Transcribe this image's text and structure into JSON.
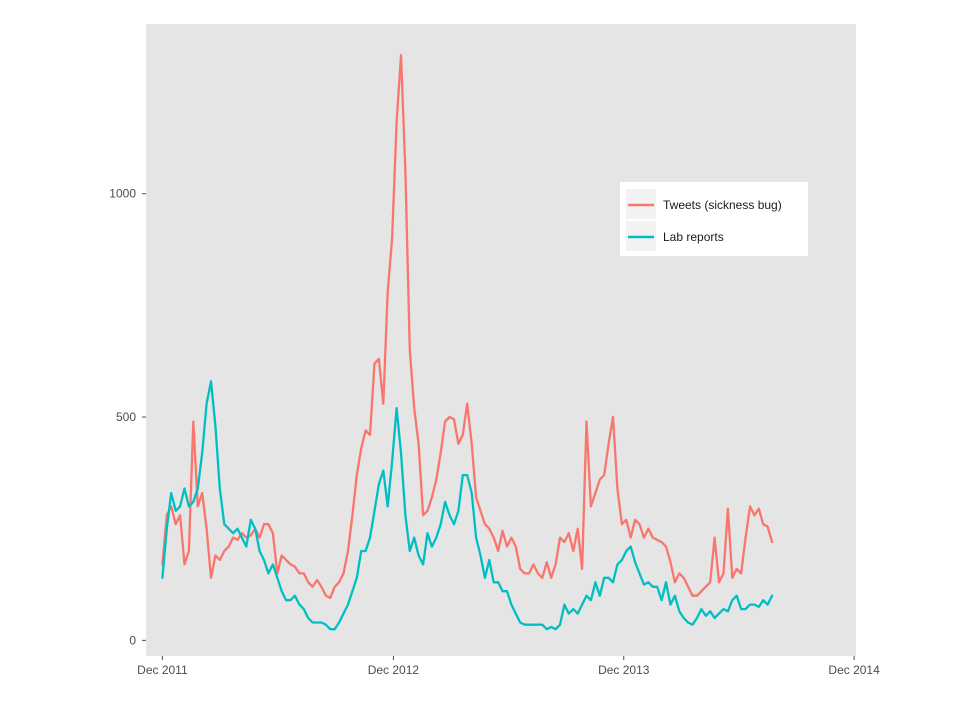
{
  "chart_data": {
    "type": "line",
    "title": "",
    "xlabel": "",
    "ylabel": "",
    "x_ticks": [
      "Dec 2011",
      "Dec 2012",
      "Dec 2013",
      "Dec 2014"
    ],
    "y_ticks": [
      0,
      500,
      1000
    ],
    "xlim": [
      "2011-11-05",
      "2014-12-04"
    ],
    "ylim": [
      -35,
      1380
    ],
    "grid": false,
    "legend_position": "top-right (inside plot)",
    "colors": {
      "panel_background": "#e5e5e5",
      "tweets": "#f8766d",
      "lab": "#00bfc4"
    },
    "series": [
      {
        "name": "Tweets (sickness bug)",
        "color": "#f8766d",
        "points": [
          [
            "2011-12-01",
            170
          ],
          [
            "2011-12-08",
            280
          ],
          [
            "2011-12-15",
            300
          ],
          [
            "2011-12-22",
            260
          ],
          [
            "2011-12-29",
            280
          ],
          [
            "2012-01-05",
            170
          ],
          [
            "2012-01-12",
            200
          ],
          [
            "2012-01-19",
            490
          ],
          [
            "2012-01-26",
            300
          ],
          [
            "2012-02-02",
            330
          ],
          [
            "2012-02-09",
            250
          ],
          [
            "2012-02-16",
            140
          ],
          [
            "2012-02-23",
            190
          ],
          [
            "2012-03-01",
            180
          ],
          [
            "2012-03-08",
            200
          ],
          [
            "2012-03-15",
            210
          ],
          [
            "2012-03-22",
            230
          ],
          [
            "2012-03-29",
            225
          ],
          [
            "2012-04-05",
            240
          ],
          [
            "2012-04-12",
            230
          ],
          [
            "2012-04-19",
            235
          ],
          [
            "2012-04-26",
            250
          ],
          [
            "2012-05-03",
            230
          ],
          [
            "2012-05-10",
            260
          ],
          [
            "2012-05-17",
            260
          ],
          [
            "2012-05-24",
            240
          ],
          [
            "2012-05-31",
            150
          ],
          [
            "2012-06-07",
            190
          ],
          [
            "2012-06-14",
            180
          ],
          [
            "2012-06-21",
            170
          ],
          [
            "2012-06-28",
            165
          ],
          [
            "2012-07-05",
            150
          ],
          [
            "2012-07-12",
            150
          ],
          [
            "2012-07-19",
            130
          ],
          [
            "2012-07-26",
            120
          ],
          [
            "2012-08-02",
            135
          ],
          [
            "2012-08-09",
            120
          ],
          [
            "2012-08-16",
            100
          ],
          [
            "2012-08-23",
            95
          ],
          [
            "2012-08-30",
            120
          ],
          [
            "2012-09-06",
            130
          ],
          [
            "2012-09-13",
            150
          ],
          [
            "2012-09-20",
            200
          ],
          [
            "2012-09-27",
            280
          ],
          [
            "2012-10-04",
            370
          ],
          [
            "2012-10-11",
            430
          ],
          [
            "2012-10-18",
            470
          ],
          [
            "2012-10-25",
            460
          ],
          [
            "2012-11-01",
            620
          ],
          [
            "2012-11-08",
            630
          ],
          [
            "2012-11-15",
            530
          ],
          [
            "2012-11-22",
            780
          ],
          [
            "2012-11-29",
            900
          ],
          [
            "2012-12-06",
            1160
          ],
          [
            "2012-12-13",
            1310
          ],
          [
            "2012-12-20",
            1050
          ],
          [
            "2012-12-27",
            650
          ],
          [
            "2013-01-03",
            520
          ],
          [
            "2013-01-10",
            440
          ],
          [
            "2013-01-17",
            280
          ],
          [
            "2013-01-24",
            290
          ],
          [
            "2013-01-31",
            320
          ],
          [
            "2013-02-07",
            360
          ],
          [
            "2013-02-14",
            420
          ],
          [
            "2013-02-21",
            490
          ],
          [
            "2013-02-28",
            500
          ],
          [
            "2013-03-07",
            495
          ],
          [
            "2013-03-14",
            440
          ],
          [
            "2013-03-21",
            460
          ],
          [
            "2013-03-28",
            530
          ],
          [
            "2013-04-04",
            440
          ],
          [
            "2013-04-11",
            320
          ],
          [
            "2013-04-18",
            290
          ],
          [
            "2013-04-25",
            260
          ],
          [
            "2013-05-02",
            250
          ],
          [
            "2013-05-09",
            230
          ],
          [
            "2013-05-16",
            200
          ],
          [
            "2013-05-23",
            245
          ],
          [
            "2013-05-30",
            210
          ],
          [
            "2013-06-06",
            230
          ],
          [
            "2013-06-13",
            210
          ],
          [
            "2013-06-20",
            160
          ],
          [
            "2013-06-27",
            150
          ],
          [
            "2013-07-04",
            150
          ],
          [
            "2013-07-11",
            170
          ],
          [
            "2013-07-18",
            150
          ],
          [
            "2013-07-25",
            140
          ],
          [
            "2013-08-01",
            175
          ],
          [
            "2013-08-08",
            140
          ],
          [
            "2013-08-15",
            170
          ],
          [
            "2013-08-22",
            230
          ],
          [
            "2013-08-29",
            220
          ],
          [
            "2013-09-05",
            240
          ],
          [
            "2013-09-12",
            200
          ],
          [
            "2013-09-19",
            250
          ],
          [
            "2013-09-26",
            160
          ],
          [
            "2013-10-03",
            490
          ],
          [
            "2013-10-10",
            300
          ],
          [
            "2013-10-17",
            330
          ],
          [
            "2013-10-24",
            360
          ],
          [
            "2013-10-31",
            370
          ],
          [
            "2013-11-07",
            440
          ],
          [
            "2013-11-14",
            500
          ],
          [
            "2013-11-21",
            340
          ],
          [
            "2013-11-28",
            260
          ],
          [
            "2013-12-05",
            270
          ],
          [
            "2013-12-12",
            230
          ],
          [
            "2013-12-19",
            270
          ],
          [
            "2013-12-26",
            260
          ],
          [
            "2014-01-02",
            230
          ],
          [
            "2014-01-09",
            250
          ],
          [
            "2014-01-16",
            230
          ],
          [
            "2014-01-23",
            225
          ],
          [
            "2014-01-30",
            220
          ],
          [
            "2014-02-06",
            210
          ],
          [
            "2014-02-13",
            175
          ],
          [
            "2014-02-20",
            130
          ],
          [
            "2014-02-27",
            150
          ],
          [
            "2014-03-06",
            140
          ],
          [
            "2014-03-13",
            120
          ],
          [
            "2014-03-20",
            100
          ],
          [
            "2014-03-27",
            100
          ],
          [
            "2014-04-03",
            110
          ],
          [
            "2014-04-10",
            120
          ],
          [
            "2014-04-17",
            130
          ],
          [
            "2014-04-24",
            230
          ],
          [
            "2014-05-01",
            130
          ],
          [
            "2014-05-08",
            150
          ],
          [
            "2014-05-15",
            295
          ],
          [
            "2014-05-22",
            140
          ],
          [
            "2014-05-29",
            160
          ],
          [
            "2014-06-05",
            150
          ],
          [
            "2014-06-12",
            230
          ],
          [
            "2014-06-19",
            300
          ],
          [
            "2014-06-26",
            280
          ],
          [
            "2014-07-03",
            295
          ],
          [
            "2014-07-10",
            260
          ],
          [
            "2014-07-17",
            255
          ],
          [
            "2014-07-24",
            220
          ]
        ]
      },
      {
        "name": "Lab reports",
        "color": "#00bfc4",
        "points": [
          [
            "2011-12-01",
            140
          ],
          [
            "2011-12-08",
            250
          ],
          [
            "2011-12-15",
            330
          ],
          [
            "2011-12-22",
            290
          ],
          [
            "2011-12-29",
            300
          ],
          [
            "2012-01-05",
            340
          ],
          [
            "2012-01-12",
            300
          ],
          [
            "2012-01-19",
            310
          ],
          [
            "2012-01-26",
            340
          ],
          [
            "2012-02-02",
            420
          ],
          [
            "2012-02-09",
            530
          ],
          [
            "2012-02-16",
            580
          ],
          [
            "2012-02-23",
            480
          ],
          [
            "2012-03-01",
            340
          ],
          [
            "2012-03-08",
            260
          ],
          [
            "2012-03-15",
            250
          ],
          [
            "2012-03-22",
            240
          ],
          [
            "2012-03-29",
            250
          ],
          [
            "2012-04-05",
            230
          ],
          [
            "2012-04-12",
            210
          ],
          [
            "2012-04-19",
            270
          ],
          [
            "2012-04-26",
            250
          ],
          [
            "2012-05-03",
            200
          ],
          [
            "2012-05-10",
            180
          ],
          [
            "2012-05-17",
            150
          ],
          [
            "2012-05-24",
            170
          ],
          [
            "2012-05-31",
            140
          ],
          [
            "2012-06-07",
            110
          ],
          [
            "2012-06-14",
            90
          ],
          [
            "2012-06-21",
            90
          ],
          [
            "2012-06-28",
            100
          ],
          [
            "2012-07-05",
            80
          ],
          [
            "2012-07-12",
            70
          ],
          [
            "2012-07-19",
            50
          ],
          [
            "2012-07-26",
            40
          ],
          [
            "2012-08-02",
            40
          ],
          [
            "2012-08-09",
            40
          ],
          [
            "2012-08-16",
            35
          ],
          [
            "2012-08-23",
            25
          ],
          [
            "2012-08-30",
            25
          ],
          [
            "2012-09-06",
            40
          ],
          [
            "2012-09-13",
            60
          ],
          [
            "2012-09-20",
            80
          ],
          [
            "2012-09-27",
            110
          ],
          [
            "2012-10-04",
            140
          ],
          [
            "2012-10-11",
            200
          ],
          [
            "2012-10-18",
            200
          ],
          [
            "2012-10-25",
            230
          ],
          [
            "2012-11-01",
            290
          ],
          [
            "2012-11-08",
            350
          ],
          [
            "2012-11-15",
            380
          ],
          [
            "2012-11-22",
            300
          ],
          [
            "2012-11-29",
            400
          ],
          [
            "2012-12-06",
            520
          ],
          [
            "2012-12-13",
            420
          ],
          [
            "2012-12-20",
            280
          ],
          [
            "2012-12-27",
            200
          ],
          [
            "2013-01-03",
            230
          ],
          [
            "2013-01-10",
            190
          ],
          [
            "2013-01-17",
            170
          ],
          [
            "2013-01-24",
            240
          ],
          [
            "2013-01-31",
            210
          ],
          [
            "2013-02-07",
            230
          ],
          [
            "2013-02-14",
            260
          ],
          [
            "2013-02-21",
            310
          ],
          [
            "2013-02-28",
            280
          ],
          [
            "2013-03-07",
            260
          ],
          [
            "2013-03-14",
            290
          ],
          [
            "2013-03-21",
            370
          ],
          [
            "2013-03-28",
            370
          ],
          [
            "2013-04-04",
            330
          ],
          [
            "2013-04-11",
            230
          ],
          [
            "2013-04-18",
            190
          ],
          [
            "2013-04-25",
            140
          ],
          [
            "2013-05-02",
            180
          ],
          [
            "2013-05-09",
            130
          ],
          [
            "2013-05-16",
            130
          ],
          [
            "2013-05-23",
            110
          ],
          [
            "2013-05-30",
            110
          ],
          [
            "2013-06-06",
            80
          ],
          [
            "2013-06-13",
            60
          ],
          [
            "2013-06-20",
            40
          ],
          [
            "2013-06-27",
            35
          ],
          [
            "2013-07-04",
            35
          ],
          [
            "2013-07-11",
            35
          ],
          [
            "2013-07-18",
            35
          ],
          [
            "2013-07-25",
            35
          ],
          [
            "2013-08-01",
            25
          ],
          [
            "2013-08-08",
            30
          ],
          [
            "2013-08-15",
            25
          ],
          [
            "2013-08-22",
            35
          ],
          [
            "2013-08-29",
            80
          ],
          [
            "2013-09-05",
            60
          ],
          [
            "2013-09-12",
            70
          ],
          [
            "2013-09-19",
            60
          ],
          [
            "2013-09-26",
            80
          ],
          [
            "2013-10-03",
            100
          ],
          [
            "2013-10-10",
            90
          ],
          [
            "2013-10-17",
            130
          ],
          [
            "2013-10-24",
            100
          ],
          [
            "2013-10-31",
            140
          ],
          [
            "2013-11-07",
            140
          ],
          [
            "2013-11-14",
            130
          ],
          [
            "2013-11-21",
            170
          ],
          [
            "2013-11-28",
            180
          ],
          [
            "2013-12-05",
            200
          ],
          [
            "2013-12-12",
            210
          ],
          [
            "2013-12-19",
            175
          ],
          [
            "2013-12-26",
            150
          ],
          [
            "2014-01-02",
            125
          ],
          [
            "2014-01-09",
            130
          ],
          [
            "2014-01-16",
            120
          ],
          [
            "2014-01-23",
            120
          ],
          [
            "2014-01-30",
            90
          ],
          [
            "2014-02-06",
            130
          ],
          [
            "2014-02-13",
            80
          ],
          [
            "2014-02-20",
            100
          ],
          [
            "2014-02-27",
            65
          ],
          [
            "2014-03-06",
            50
          ],
          [
            "2014-03-13",
            40
          ],
          [
            "2014-03-20",
            35
          ],
          [
            "2014-03-27",
            50
          ],
          [
            "2014-04-03",
            70
          ],
          [
            "2014-04-10",
            55
          ],
          [
            "2014-04-17",
            65
          ],
          [
            "2014-04-24",
            50
          ],
          [
            "2014-05-01",
            60
          ],
          [
            "2014-05-08",
            70
          ],
          [
            "2014-05-15",
            65
          ],
          [
            "2014-05-22",
            90
          ],
          [
            "2014-05-29",
            100
          ],
          [
            "2014-06-05",
            70
          ],
          [
            "2014-06-12",
            70
          ],
          [
            "2014-06-19",
            80
          ],
          [
            "2014-06-26",
            80
          ],
          [
            "2014-07-03",
            75
          ],
          [
            "2014-07-10",
            90
          ],
          [
            "2014-07-17",
            80
          ],
          [
            "2014-07-24",
            100
          ]
        ]
      }
    ]
  }
}
